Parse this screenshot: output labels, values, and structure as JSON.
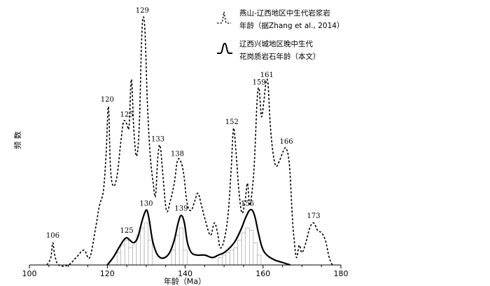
{
  "chart_data": {
    "type": "line",
    "xlabel": "年龄（Ma）",
    "ylabel": "频 数",
    "xlim": [
      100,
      180
    ],
    "x_ticks": [
      100,
      120,
      140,
      160,
      180
    ],
    "grid": false,
    "legend_position": "top-right",
    "series": [
      {
        "name": "燕山-辽西地区中生代岩浆岩年龄（据Zhang et al., 2014）",
        "style": "dashed",
        "peaks": [
          106,
          120,
          125,
          129,
          133,
          138,
          152,
          159,
          161,
          166,
          173
        ],
        "points": [
          [
            104.5,
            0.0
          ],
          [
            105.5,
            0.03
          ],
          [
            106.0,
            0.09
          ],
          [
            106.5,
            0.04
          ],
          [
            107.5,
            0.0
          ],
          [
            110,
            0.0
          ],
          [
            112,
            0.03
          ],
          [
            114,
            0.06
          ],
          [
            115.5,
            0.03
          ],
          [
            117,
            0.15
          ],
          [
            118,
            0.24
          ],
          [
            119,
            0.3
          ],
          [
            119.7,
            0.45
          ],
          [
            120.3,
            0.64
          ],
          [
            120.8,
            0.4
          ],
          [
            121.5,
            0.32
          ],
          [
            122.5,
            0.36
          ],
          [
            123.5,
            0.5
          ],
          [
            124.2,
            0.58
          ],
          [
            125.0,
            0.57
          ],
          [
            125.6,
            0.56
          ],
          [
            126.2,
            0.75
          ],
          [
            126.8,
            0.55
          ],
          [
            127.5,
            0.44
          ],
          [
            128.2,
            0.56
          ],
          [
            128.8,
            0.9
          ],
          [
            129.2,
            1.0
          ],
          [
            129.7,
            0.94
          ],
          [
            130.3,
            0.66
          ],
          [
            131.0,
            0.45
          ],
          [
            131.8,
            0.33
          ],
          [
            132.4,
            0.28
          ],
          [
            133.0,
            0.44
          ],
          [
            133.6,
            0.48
          ],
          [
            134.3,
            0.36
          ],
          [
            135.2,
            0.22
          ],
          [
            136.2,
            0.26
          ],
          [
            137.2,
            0.33
          ],
          [
            138.0,
            0.42
          ],
          [
            138.8,
            0.42
          ],
          [
            139.6,
            0.37
          ],
          [
            140.5,
            0.25
          ],
          [
            141.5,
            0.22
          ],
          [
            142.5,
            0.26
          ],
          [
            143.3,
            0.29
          ],
          [
            144.2,
            0.24
          ],
          [
            145.2,
            0.18
          ],
          [
            146.5,
            0.12
          ],
          [
            147.5,
            0.17
          ],
          [
            148.3,
            0.13
          ],
          [
            149.0,
            0.07
          ],
          [
            150.0,
            0.1
          ],
          [
            151.0,
            0.2
          ],
          [
            151.8,
            0.38
          ],
          [
            152.4,
            0.55
          ],
          [
            153.0,
            0.47
          ],
          [
            153.8,
            0.3
          ],
          [
            154.6,
            0.21
          ],
          [
            155.4,
            0.26
          ],
          [
            156.0,
            0.33
          ],
          [
            156.6,
            0.24
          ],
          [
            157.2,
            0.3
          ],
          [
            157.8,
            0.42
          ],
          [
            158.5,
            0.67
          ],
          [
            159.0,
            0.71
          ],
          [
            159.6,
            0.6
          ],
          [
            160.2,
            0.66
          ],
          [
            160.8,
            0.74
          ],
          [
            161.3,
            0.73
          ],
          [
            161.8,
            0.58
          ],
          [
            162.5,
            0.46
          ],
          [
            163.3,
            0.4
          ],
          [
            164.2,
            0.42
          ],
          [
            165.2,
            0.46
          ],
          [
            166.0,
            0.47
          ],
          [
            166.8,
            0.4
          ],
          [
            167.5,
            0.2
          ],
          [
            168.0,
            0.1
          ],
          [
            168.6,
            0.03
          ],
          [
            169.3,
            0.08
          ],
          [
            170.0,
            0.05
          ],
          [
            171.0,
            0.09
          ],
          [
            172.0,
            0.15
          ],
          [
            173.0,
            0.17
          ],
          [
            174.0,
            0.14
          ],
          [
            175.0,
            0.13
          ],
          [
            176.0,
            0.1
          ],
          [
            177.0,
            0.03
          ],
          [
            177.8,
            0.0
          ]
        ]
      },
      {
        "name": "辽西兴城地区晚中生代花岗质岩石年龄（本文）",
        "style": "solid",
        "peaks": [
          125,
          130,
          139,
          156
        ],
        "points": [
          [
            120,
            0.0
          ],
          [
            121.5,
            0.03
          ],
          [
            123,
            0.07
          ],
          [
            124.2,
            0.1
          ],
          [
            125.0,
            0.11
          ],
          [
            125.8,
            0.1
          ],
          [
            126.8,
            0.09
          ],
          [
            127.8,
            0.11
          ],
          [
            128.8,
            0.17
          ],
          [
            129.6,
            0.21
          ],
          [
            130.2,
            0.22
          ],
          [
            130.8,
            0.18
          ],
          [
            131.6,
            0.1
          ],
          [
            132.6,
            0.05
          ],
          [
            133.6,
            0.03
          ],
          [
            134.8,
            0.03
          ],
          [
            136.0,
            0.05
          ],
          [
            137.2,
            0.1
          ],
          [
            138.2,
            0.17
          ],
          [
            139.0,
            0.2
          ],
          [
            139.8,
            0.17
          ],
          [
            140.6,
            0.09
          ],
          [
            141.6,
            0.05
          ],
          [
            143.0,
            0.04
          ],
          [
            145.0,
            0.04
          ],
          [
            147.0,
            0.03
          ],
          [
            148.5,
            0.04
          ],
          [
            150.0,
            0.05
          ],
          [
            151.5,
            0.07
          ],
          [
            153.0,
            0.1
          ],
          [
            154.5,
            0.15
          ],
          [
            155.5,
            0.19
          ],
          [
            156.5,
            0.22
          ],
          [
            157.3,
            0.22
          ],
          [
            158.0,
            0.19
          ],
          [
            158.8,
            0.13
          ],
          [
            159.8,
            0.07
          ],
          [
            161.0,
            0.04
          ],
          [
            163.0,
            0.02
          ],
          [
            165.0,
            0.01
          ],
          [
            167.0,
            0.0
          ]
        ]
      }
    ],
    "histogram": {
      "bin_width": 1,
      "bars": [
        [
          123,
          0.05
        ],
        [
          124,
          0.08
        ],
        [
          125,
          0.1
        ],
        [
          126,
          0.07
        ],
        [
          127,
          0.08
        ],
        [
          128,
          0.12
        ],
        [
          129,
          0.15
        ],
        [
          130,
          0.17
        ],
        [
          131,
          0.1
        ],
        [
          137,
          0.06
        ],
        [
          138,
          0.12
        ],
        [
          139,
          0.15
        ],
        [
          140,
          0.06
        ],
        [
          149,
          0.03
        ],
        [
          150,
          0.04
        ],
        [
          151,
          0.05
        ],
        [
          152,
          0.06
        ],
        [
          153,
          0.07
        ],
        [
          154,
          0.1
        ],
        [
          155,
          0.13
        ],
        [
          156,
          0.15
        ],
        [
          157,
          0.14
        ],
        [
          158,
          0.09
        ],
        [
          159,
          0.04
        ]
      ]
    },
    "legend": [
      {
        "line1": "燕山-辽西地区中生代岩浆岩",
        "line2": "年龄（据Zhang et al., 2014）"
      },
      {
        "line1": "辽西兴城地区晚中生代",
        "line2": "花岗质岩石年龄（本文）"
      }
    ]
  }
}
